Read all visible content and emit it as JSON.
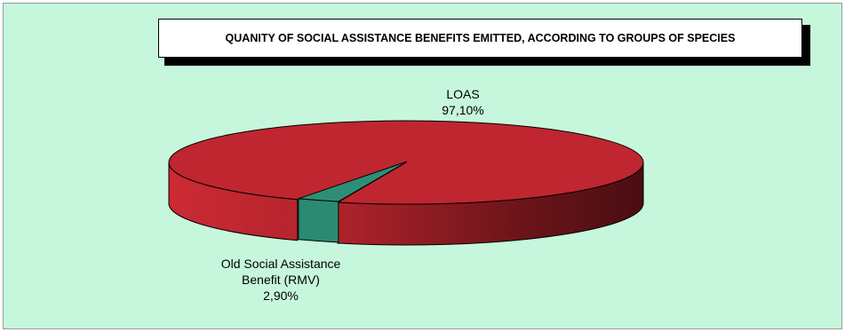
{
  "chart_data": {
    "type": "pie",
    "style": "3d-exploded-tilted",
    "title": "QUANITY OF SOCIAL ASSISTANCE BENEFITS EMITTED, ACCORDING TO GROUPS OF SPECIES",
    "slices": [
      {
        "name": "LOAS",
        "value": 97.1,
        "value_label": "97,10%",
        "color": "#c0262f"
      },
      {
        "name_lines": [
          "Old Social Assistance",
          "Benefit (RMV)"
        ],
        "value": 2.9,
        "value_label": "2,90%",
        "color": "#2b8a72"
      }
    ],
    "background": "#c6f7dc",
    "legend": "none"
  }
}
